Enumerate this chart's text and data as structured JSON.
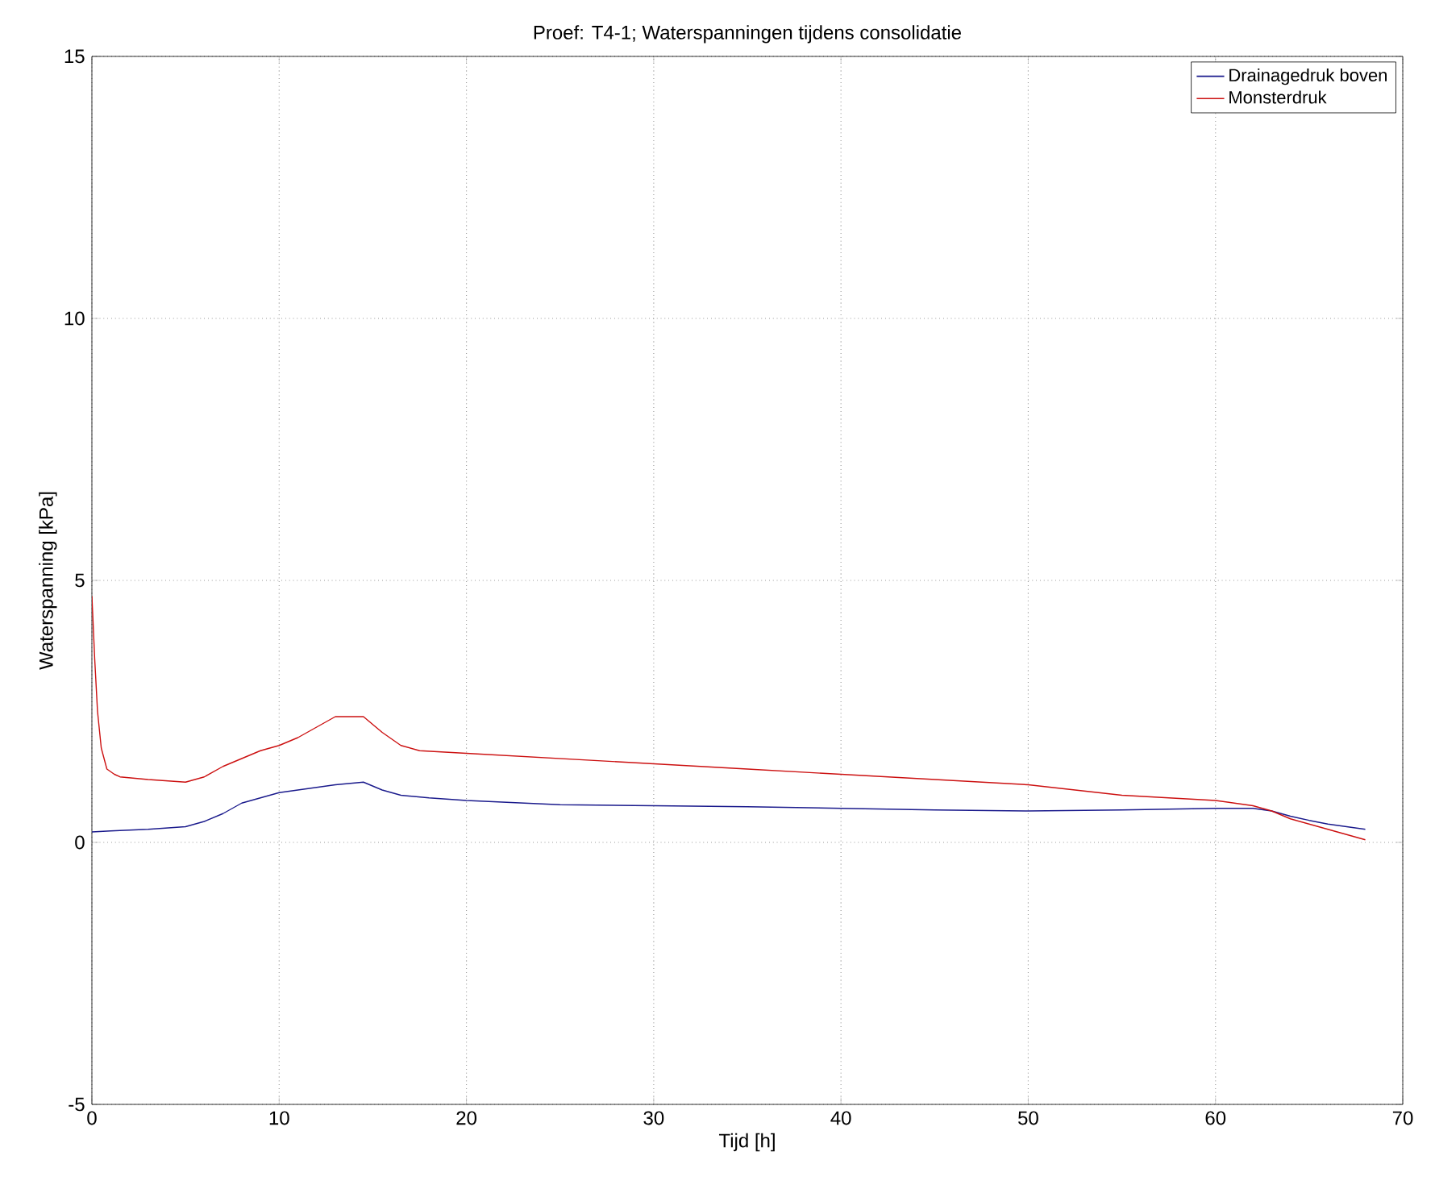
{
  "chart_data": {
    "type": "line",
    "title": "Proef: T4-1; Waterspanningen tijdens consolidatie",
    "xlabel": "Tijd [h]",
    "ylabel": "Waterspanning [kPa]",
    "xlim": [
      0,
      70
    ],
    "ylim": [
      -5,
      15
    ],
    "xticks": [
      0,
      10,
      20,
      30,
      40,
      50,
      60,
      70
    ],
    "yticks": [
      -5,
      0,
      5,
      10,
      15
    ],
    "grid": true,
    "legend": "top right",
    "line_style": "solid",
    "series": [
      {
        "name": "Drainagedruk boven",
        "color": "#1a1a8c",
        "x": [
          0,
          1,
          3,
          5,
          6,
          7,
          8,
          10,
          12,
          13,
          14.5,
          15.5,
          16.5,
          18,
          20,
          25,
          30,
          35,
          40,
          45,
          50,
          55,
          60,
          62,
          63,
          64,
          65,
          66,
          67,
          68
        ],
        "values": [
          0.2,
          0.22,
          0.25,
          0.3,
          0.4,
          0.55,
          0.75,
          0.95,
          1.05,
          1.1,
          1.15,
          1.0,
          0.9,
          0.85,
          0.8,
          0.72,
          0.7,
          0.68,
          0.65,
          0.62,
          0.6,
          0.62,
          0.65,
          0.65,
          0.6,
          0.5,
          0.42,
          0.35,
          0.3,
          0.25
        ]
      },
      {
        "name": "Monsterdruk",
        "color": "#cc1010",
        "x": [
          0,
          0.15,
          0.3,
          0.5,
          0.8,
          1.2,
          1.5,
          3,
          5,
          6,
          7,
          8,
          9,
          10,
          11,
          12,
          13,
          14.5,
          15.5,
          16.5,
          17.5,
          20,
          25,
          30,
          35,
          40,
          45,
          50,
          55,
          60,
          62,
          63,
          64,
          65,
          66,
          67,
          68
        ],
        "values": [
          4.7,
          3.5,
          2.5,
          1.8,
          1.4,
          1.3,
          1.25,
          1.2,
          1.15,
          1.25,
          1.45,
          1.6,
          1.75,
          1.85,
          2.0,
          2.2,
          2.4,
          2.4,
          2.1,
          1.85,
          1.75,
          1.7,
          1.6,
          1.5,
          1.4,
          1.3,
          1.2,
          1.1,
          0.9,
          0.8,
          0.7,
          0.6,
          0.45,
          0.35,
          0.25,
          0.15,
          0.05
        ]
      }
    ]
  }
}
